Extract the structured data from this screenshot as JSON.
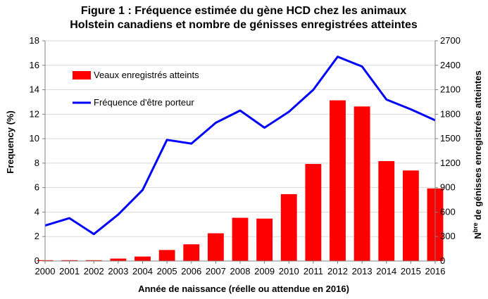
{
  "chart_data": {
    "type": "bar+line",
    "title_lines": [
      "Figure 1 : Fréquence estimée du gène HCD chez les animaux",
      "Holstein canadiens et nombre de génisses enregistrées atteintes"
    ],
    "xlabel": "Année de naissance (réelle ou attendue en 2016)",
    "ylabel_left": "Frequency (%)",
    "ylabel_right_prefix": "N",
    "ylabel_right_sup": "bre",
    "ylabel_right_rest": " de génisses enregistrées atteintes",
    "categories": [
      "2000",
      "2001",
      "2002",
      "2003",
      "2004",
      "2005",
      "2006",
      "2007",
      "2008",
      "2009",
      "2010",
      "2011",
      "2012",
      "2013",
      "2014",
      "2015",
      "2016"
    ],
    "y_left": {
      "min": 0,
      "max": 18,
      "ticks": [
        0,
        2,
        4,
        6,
        8,
        10,
        12,
        14,
        16,
        18
      ]
    },
    "y_right": {
      "min": 0,
      "max": 2700,
      "ticks": [
        0,
        300,
        600,
        900,
        1200,
        1500,
        1800,
        2100,
        2400,
        2700
      ]
    },
    "series": [
      {
        "name": "Veaux enregistrés atteints",
        "kind": "bar",
        "axis": "right",
        "color": "#ff0000",
        "values": [
          10,
          10,
          10,
          30,
          55,
          135,
          205,
          340,
          530,
          520,
          820,
          1190,
          1970,
          1895,
          1225,
          1110,
          890
        ]
      },
      {
        "name": "Fréquence d'être porteur",
        "kind": "line",
        "axis": "left",
        "color": "#0000ff",
        "values": [
          2.9,
          3.5,
          2.2,
          3.8,
          5.8,
          9.9,
          9.6,
          11.3,
          12.3,
          10.9,
          12.2,
          14.0,
          16.7,
          15.9,
          13.2,
          12.4,
          11.5
        ]
      }
    ],
    "legend_position": "top-left"
  }
}
